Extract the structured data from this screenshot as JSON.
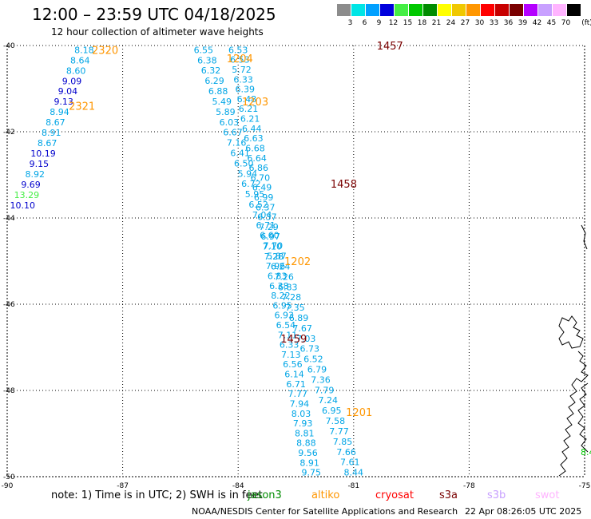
{
  "title": "12:00 – 23:59 UTC 04/18/2025",
  "subtitle": "12 hour collection of altimeter wave heights",
  "legend": {
    "unit": "(ft)",
    "bins": [
      {
        "label": "3",
        "color": "#8c8c8c"
      },
      {
        "label": "6",
        "color": "#00e5e5"
      },
      {
        "label": "9",
        "color": "#00a0ff"
      },
      {
        "label": "12",
        "color": "#0000dd"
      },
      {
        "label": "15",
        "color": "#44ee44"
      },
      {
        "label": "18",
        "color": "#00c800"
      },
      {
        "label": "21",
        "color": "#008c00"
      },
      {
        "label": "24",
        "color": "#ffff00"
      },
      {
        "label": "27",
        "color": "#f0c800"
      },
      {
        "label": "30",
        "color": "#ff9600"
      },
      {
        "label": "33",
        "color": "#ff0000"
      },
      {
        "label": "36",
        "color": "#c80000"
      },
      {
        "label": "39",
        "color": "#7a0000"
      },
      {
        "label": "42",
        "color": "#b400ff"
      },
      {
        "label": "45",
        "color": "#c8a0ff"
      },
      {
        "label": "70",
        "color": "#ffb4ff"
      },
      {
        "label": "",
        "color": "#000000"
      }
    ]
  },
  "axes": {
    "lon_ticks": [
      {
        "value": -90,
        "label": "-90"
      },
      {
        "value": -87,
        "label": "-87"
      },
      {
        "value": -84,
        "label": "-84"
      },
      {
        "value": -81,
        "label": "-81"
      },
      {
        "value": -78,
        "label": "-78"
      },
      {
        "value": -75,
        "label": "-75"
      }
    ],
    "lat_ticks": [
      {
        "value": -40,
        "label": "-40"
      },
      {
        "value": -42,
        "label": "-42"
      },
      {
        "value": -44,
        "label": "-44"
      },
      {
        "value": -46,
        "label": "-46"
      },
      {
        "value": -48,
        "label": "-48"
      },
      {
        "value": -50,
        "label": "-50"
      }
    ],
    "lon_range": [
      -90,
      -75
    ],
    "lat_range": [
      -50,
      -40
    ]
  },
  "tracks": [
    {
      "color": "#00a5e6",
      "lon_start": -84.9,
      "lon_end": -81.0,
      "lat_start": -40.1,
      "lat_end": -49.9,
      "values": [
        "6.55",
        "6.38",
        "6.32",
        "6.29",
        "6.88",
        "5.49",
        "5.89",
        "6.03",
        "6.67",
        "7.16",
        "6.41",
        "6.50",
        "5.94",
        "6.72",
        "5.95",
        "6.52",
        "7.04",
        "6.71",
        "6.60",
        "7.70",
        "5.87",
        "6.24",
        "7.26",
        "6.83",
        "7.28",
        "7.35",
        "6.89",
        "7.67",
        "7.03",
        "6.73",
        "6.52",
        "6.79",
        "7.36",
        "7.79",
        "7.24",
        "6.95",
        "7.58",
        "7.77",
        "7.85",
        "7.66",
        "7.61",
        "8.44"
      ]
    },
    {
      "color": "#00a5e6",
      "lon_start": -84.0,
      "lon_end": -82.1,
      "lat_start": -40.1,
      "lat_end": -49.9,
      "values": [
        "6.53",
        "6.53",
        "5.72",
        "6.33",
        "6.39",
        "6.48",
        "6.21",
        "6.21",
        "6.44",
        "6.63",
        "6.68",
        "6.64",
        "6.86",
        "6.70",
        "6.49",
        "6.99",
        "6.37",
        "6.37",
        "7.29",
        "6.97",
        "7.10",
        "7.28",
        "7.96",
        "6.83",
        "6.38",
        "8.22",
        "6.95",
        "6.93",
        "6.54",
        "7.11",
        "6.33",
        "7.13",
        "6.56",
        "6.14",
        "6.71",
        "7.77",
        "7.94",
        "8.03",
        "7.93",
        "8.81",
        "8.88",
        "9.56",
        "8.91",
        "9.75"
      ]
    }
  ],
  "track_2321": {
    "values": [
      {
        "v": "8.18",
        "c": "#00a5e6"
      },
      {
        "v": "8.64",
        "c": "#00a5e6"
      },
      {
        "v": "8.60",
        "c": "#00a5e6"
      },
      {
        "v": "9.09",
        "c": "#0000cc"
      },
      {
        "v": "9.04",
        "c": "#0000cc"
      },
      {
        "v": "9.13",
        "c": "#0000cc"
      },
      {
        "v": "8.94",
        "c": "#00a5e6"
      },
      {
        "v": "8.67",
        "c": "#00a5e6"
      },
      {
        "v": "8.91",
        "c": "#00a5e6"
      },
      {
        "v": "8.67",
        "c": "#00a5e6"
      },
      {
        "v": "10.19",
        "c": "#0000cc"
      },
      {
        "v": "9.15",
        "c": "#0000cc"
      },
      {
        "v": "8.92",
        "c": "#00a5e6"
      },
      {
        "v": "9.69",
        "c": "#0000cc"
      },
      {
        "v": "13.29",
        "c": "#44ee44"
      },
      {
        "v": "10.10",
        "c": "#0000cc"
      }
    ]
  },
  "time_labels": [
    {
      "text": "2320",
      "color": "#ff9600",
      "lon": -87.8,
      "lat": -40.1
    },
    {
      "text": "1204",
      "color": "#ff9600",
      "lon": -84.3,
      "lat": -40.3
    },
    {
      "text": "1457",
      "color": "#7a0000",
      "lon": -80.4,
      "lat": -40.0
    },
    {
      "text": "1203",
      "color": "#ff9600",
      "lon": -83.9,
      "lat": -41.3
    },
    {
      "text": "2321",
      "color": "#ff9600",
      "lon": -88.4,
      "lat": -41.4
    },
    {
      "text": "1458",
      "color": "#7a0000",
      "lon": -81.6,
      "lat": -43.2
    },
    {
      "text": "1202",
      "color": "#ff9600",
      "lon": -82.8,
      "lat": -45.0
    },
    {
      "text": "1459",
      "color": "#7a0000",
      "lon": -82.9,
      "lat": -46.8
    },
    {
      "text": "1201",
      "color": "#ff9600",
      "lon": -81.2,
      "lat": -48.5
    }
  ],
  "note": "note:  1) Time is in UTC;  2) SWH is in feet",
  "satellites": [
    {
      "name": "jason3",
      "color": "#008c00",
      "left": 310
    },
    {
      "name": "altiko",
      "color": "#ff9600",
      "left": 390
    },
    {
      "name": "cryosat",
      "color": "#ff0000",
      "left": 470
    },
    {
      "name": "s3a",
      "color": "#7a0000",
      "left": 550
    },
    {
      "name": "s3b",
      "color": "#c8a0ff",
      "left": 610
    },
    {
      "name": "swot",
      "color": "#ffb4ff",
      "left": 670
    }
  ],
  "credit": "NOAA/NESDIS Center for Satellite Applications and Research",
  "timestamp": "22 Apr 08:26:05 UTC 2025",
  "edge_label": {
    "text": "8.4",
    "color": "#00c800"
  }
}
